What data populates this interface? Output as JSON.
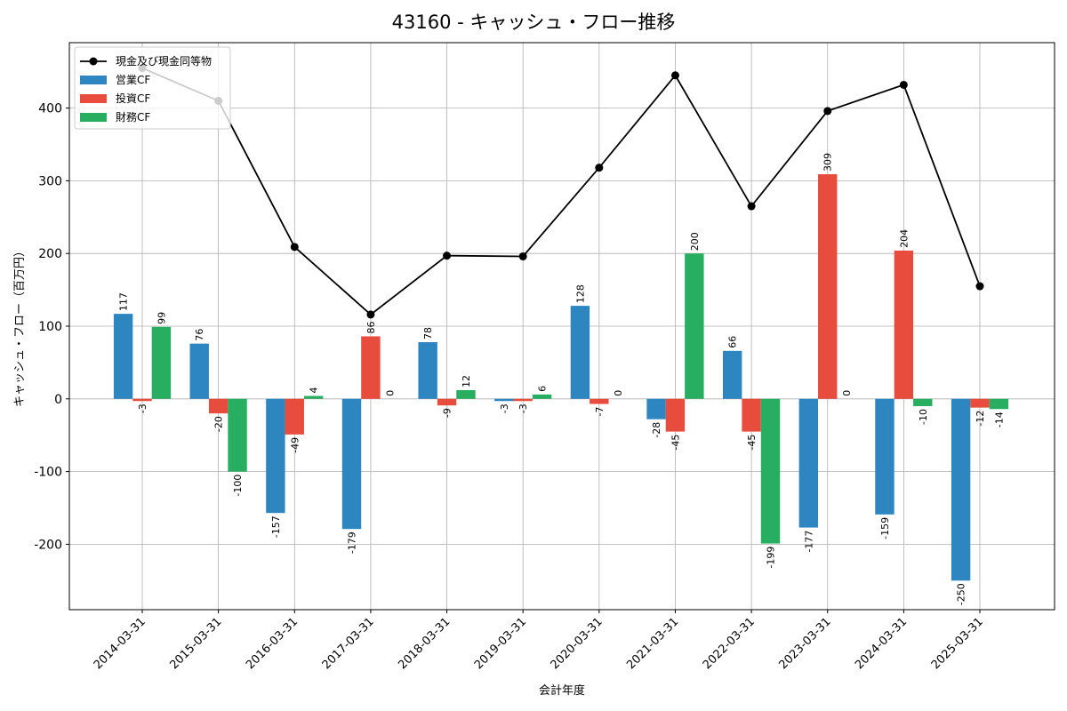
{
  "chart_data": {
    "type": "bar+line",
    "title": "43160 - キャッシュ・フロー推移",
    "xlabel": "会計年度",
    "ylabel": "キャッシュ・フロー（百万円）",
    "ylim": [
      -290,
      490
    ],
    "yticks": [
      -200,
      -100,
      0,
      100,
      200,
      300,
      400
    ],
    "grid": true,
    "legend_position": "top-left",
    "categories": [
      "2014-03-31",
      "2015-03-31",
      "2016-03-31",
      "2017-03-31",
      "2018-03-31",
      "2019-03-31",
      "2020-03-31",
      "2021-03-31",
      "2022-03-31",
      "2023-03-31",
      "2024-03-31",
      "2025-03-31"
    ],
    "series": [
      {
        "name": "営業CF",
        "kind": "bar",
        "color": "#2e86c1",
        "values": [
          117,
          76,
          -157,
          -179,
          78,
          -3,
          128,
          -28,
          66,
          -177,
          -159,
          -250
        ]
      },
      {
        "name": "投資CF",
        "kind": "bar",
        "color": "#e74c3c",
        "values": [
          -3,
          -20,
          -49,
          86,
          -9,
          -3,
          -7,
          -45,
          -45,
          309,
          204,
          -12
        ]
      },
      {
        "name": "財務CF",
        "kind": "bar",
        "color": "#27ae60",
        "values": [
          99,
          -100,
          4,
          0,
          12,
          6,
          0,
          200,
          -199,
          0,
          -10,
          -14
        ]
      },
      {
        "name": "現金及び現金同等物",
        "kind": "line",
        "color": "#000000",
        "values": [
          455,
          410,
          209,
          116,
          197,
          196,
          318,
          445,
          265,
          396,
          432,
          155
        ]
      }
    ]
  }
}
